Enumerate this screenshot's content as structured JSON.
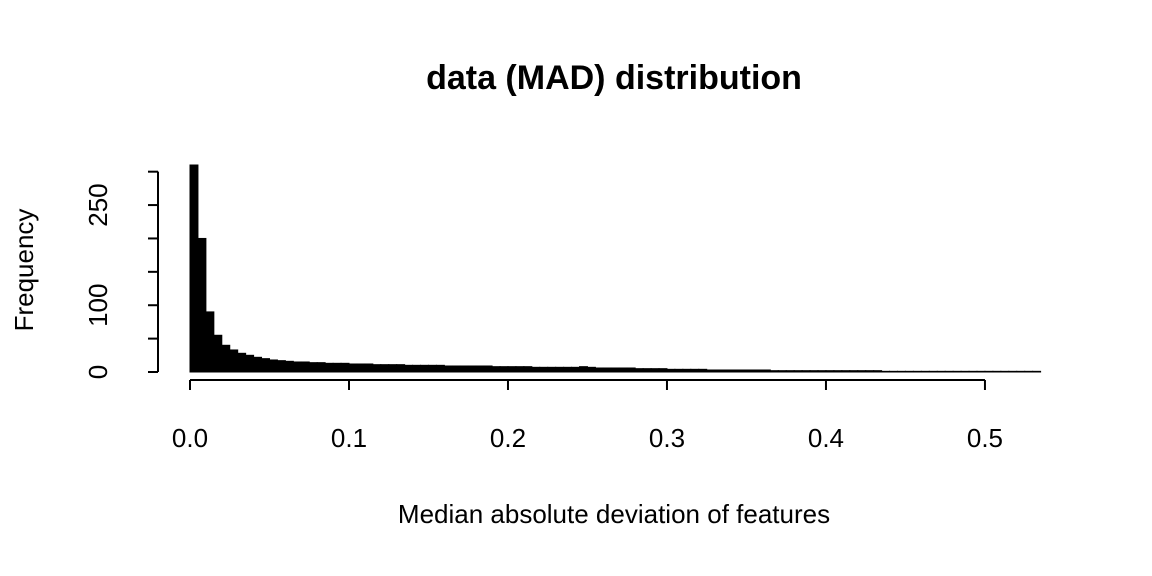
{
  "chart_data": {
    "type": "histogram",
    "title": "data (MAD) distribution",
    "x_label": "Median absolute deviation of features",
    "y_label": "Frequency",
    "color": "#000000",
    "bins": [
      0,
      0.005,
      0.01,
      0.015,
      0.02,
      0.025,
      0.03,
      0.035,
      0.04,
      0.045,
      0.05,
      0.055,
      0.06,
      0.065,
      0.07,
      0.075,
      0.08,
      0.085,
      0.09,
      0.095,
      0.1,
      0.105,
      0.11,
      0.115,
      0.12,
      0.125,
      0.13,
      0.135,
      0.14,
      0.145,
      0.15,
      0.155,
      0.16,
      0.165,
      0.17,
      0.175,
      0.18,
      0.185,
      0.19,
      0.195,
      0.2,
      0.205,
      0.21,
      0.215,
      0.22,
      0.225,
      0.23,
      0.235,
      0.24,
      0.245,
      0.25,
      0.255,
      0.26,
      0.265,
      0.27,
      0.275,
      0.28,
      0.285,
      0.29,
      0.295,
      0.3,
      0.305,
      0.31,
      0.315,
      0.32,
      0.325,
      0.33,
      0.335,
      0.34,
      0.345,
      0.35,
      0.355,
      0.36,
      0.365,
      0.37,
      0.375,
      0.38,
      0.385,
      0.39,
      0.395,
      0.4,
      0.405,
      0.41,
      0.415,
      0.42,
      0.425,
      0.43,
      0.435,
      0.44,
      0.445,
      0.45,
      0.455,
      0.46,
      0.465,
      0.47,
      0.475,
      0.48,
      0.485,
      0.49,
      0.495,
      0.5,
      0.505,
      0.51,
      0.515,
      0.52,
      0.525,
      0.53,
      0.535
    ],
    "values": [
      310,
      200,
      90,
      55,
      40,
      33,
      28,
      25,
      22,
      20,
      18,
      17,
      16,
      15,
      15,
      14,
      14,
      13,
      13,
      13,
      12,
      12,
      12,
      11,
      11,
      11,
      11,
      10,
      10,
      10,
      10,
      10,
      9,
      9,
      9,
      9,
      9,
      9,
      8,
      8,
      8,
      8,
      8,
      7,
      7,
      7,
      7,
      7,
      7,
      8,
      7,
      6,
      6,
      6,
      6,
      6,
      5,
      5,
      5,
      5,
      4,
      4,
      4,
      4,
      4,
      3,
      3,
      3,
      3,
      3,
      3,
      3,
      3,
      2,
      2,
      2,
      2,
      2,
      2,
      2,
      2,
      2,
      2,
      2,
      2,
      2,
      2,
      1,
      1,
      1,
      1,
      1,
      1,
      1,
      1,
      1,
      1,
      1,
      1,
      1,
      1,
      1,
      1,
      1,
      1,
      1,
      1
    ],
    "xlim": [
      0,
      0.535
    ],
    "ylim": [
      0,
      310
    ],
    "xticks": [
      {
        "value": 0,
        "label": "0.0"
      },
      0.1,
      0.2,
      0.3,
      0.4,
      0.5
    ],
    "yticks": [
      0,
      {
        "value": 50,
        "label": null
      },
      100,
      {
        "value": 150,
        "label": null
      },
      {
        "value": 200,
        "label": null
      },
      250,
      {
        "value": 300,
        "label": null
      }
    ]
  }
}
